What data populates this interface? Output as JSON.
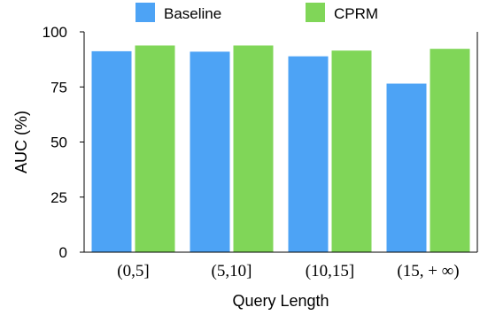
{
  "chart_data": {
    "type": "bar",
    "categories": [
      "(0,5]",
      "(5,10]",
      "(10,15]",
      "(15, + ∞)"
    ],
    "series": [
      {
        "name": "Baseline",
        "values": [
          91.2,
          91.0,
          88.9,
          76.5
        ],
        "color": "#4da3f5"
      },
      {
        "name": "CPRM",
        "values": [
          93.8,
          93.8,
          91.5,
          92.3
        ],
        "color": "#80d658"
      }
    ],
    "title": "",
    "xlabel": "Query Length",
    "ylabel": "AUC  (%)",
    "ylim": [
      0,
      100
    ],
    "yticks": [
      0,
      25,
      50,
      75,
      100
    ],
    "grid": false,
    "legend_position": "top"
  }
}
